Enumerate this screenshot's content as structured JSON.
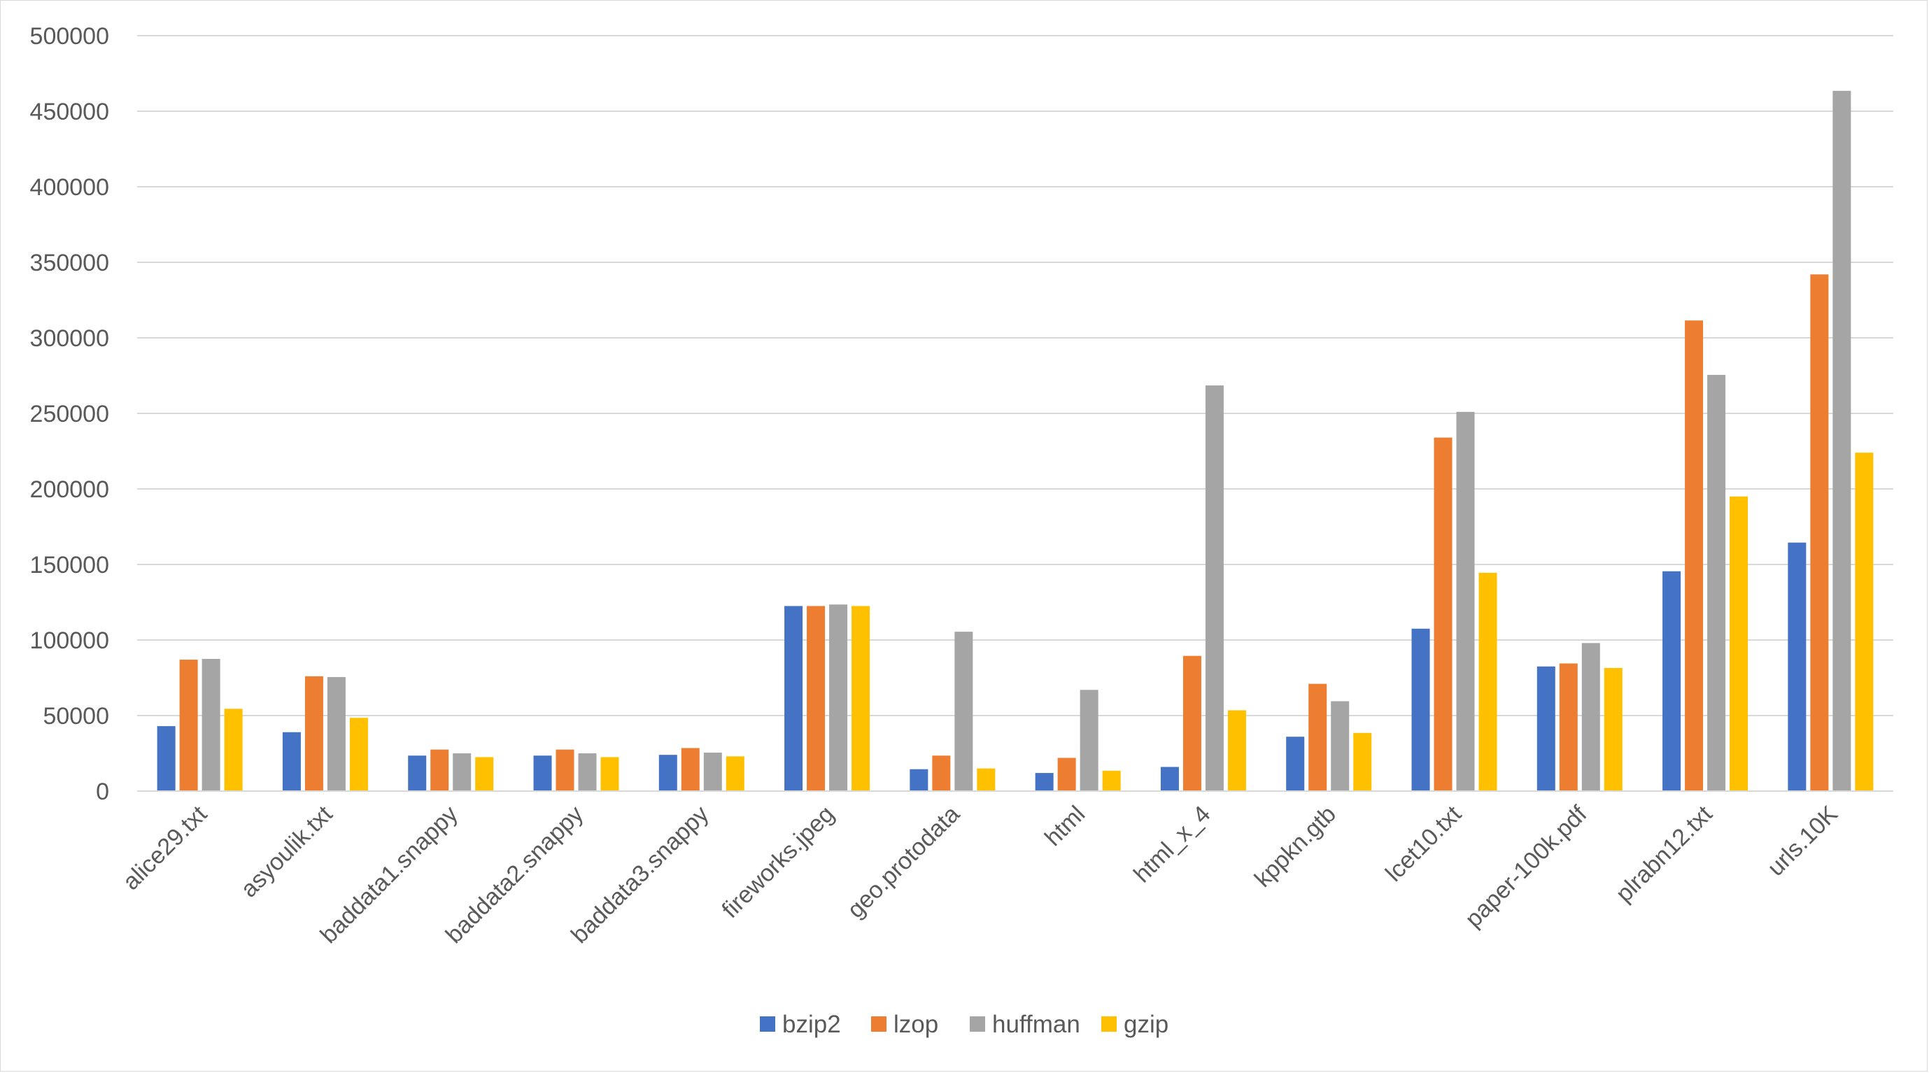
{
  "chart_data": {
    "type": "bar",
    "title": "",
    "xlabel": "",
    "ylabel": "",
    "ylim": [
      0,
      500000
    ],
    "yticks": [
      "0",
      "50000",
      "100000",
      "150000",
      "200000",
      "250000",
      "300000",
      "350000",
      "400000",
      "450000",
      "500000"
    ],
    "grid": true,
    "legend_position": "bottom",
    "categories": [
      "alice29.txt",
      "asyoulik.txt",
      "baddata1.snappy",
      "baddata2.snappy",
      "baddata3.snappy",
      "fireworks.jpeg",
      "geo.protodata",
      "html",
      "html_x_4",
      "kppkn.gtb",
      "lcet10.txt",
      "paper-100k.pdf",
      "plrabn12.txt",
      "urls.10K"
    ],
    "series": [
      {
        "name": "bzip2",
        "color": "#4472C4",
        "values": [
          43000,
          39000,
          23500,
          23500,
          24000,
          122500,
          14500,
          12000,
          16000,
          36000,
          107500,
          82500,
          145500,
          164500
        ]
      },
      {
        "name": "lzop",
        "color": "#ED7D31",
        "values": [
          87000,
          76000,
          27500,
          27500,
          28500,
          122500,
          23500,
          22000,
          89500,
          71000,
          234000,
          84500,
          311500,
          342000
        ]
      },
      {
        "name": "huffman",
        "color": "#A5A5A5",
        "values": [
          87500,
          75500,
          25000,
          25000,
          25500,
          123500,
          105500,
          67000,
          268500,
          59500,
          251000,
          98000,
          275500,
          463500
        ]
      },
      {
        "name": "gzip",
        "color": "#FFC000",
        "values": [
          54500,
          48500,
          22500,
          22500,
          23000,
          122500,
          15000,
          13500,
          53500,
          38500,
          144500,
          81500,
          195000,
          224000
        ]
      }
    ]
  }
}
